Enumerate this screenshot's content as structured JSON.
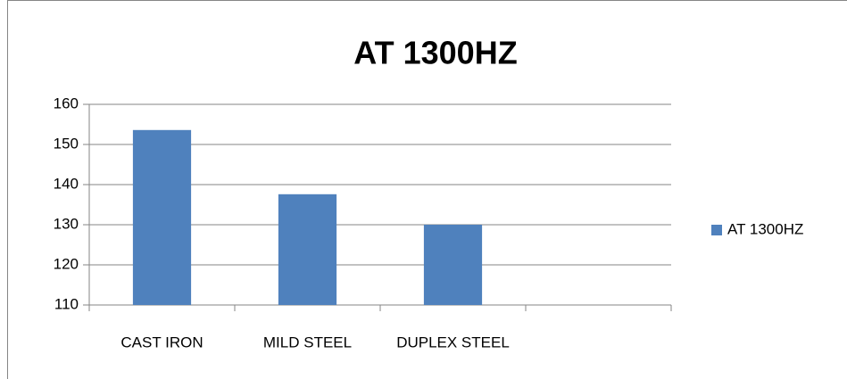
{
  "chart_data": {
    "type": "bar",
    "title": "AT 1300HZ",
    "categories": [
      "CAST IRON",
      "MILD STEEL",
      "DUPLEX STEEL",
      null
    ],
    "series": [
      {
        "name": "AT 1300HZ",
        "color": "#4f81bd",
        "values": [
          153.6,
          137.6,
          130,
          null
        ]
      }
    ],
    "ylim": [
      110,
      160
    ],
    "yticks": [
      110,
      120,
      130,
      140,
      150,
      160
    ],
    "grid": true,
    "legend": "right"
  }
}
